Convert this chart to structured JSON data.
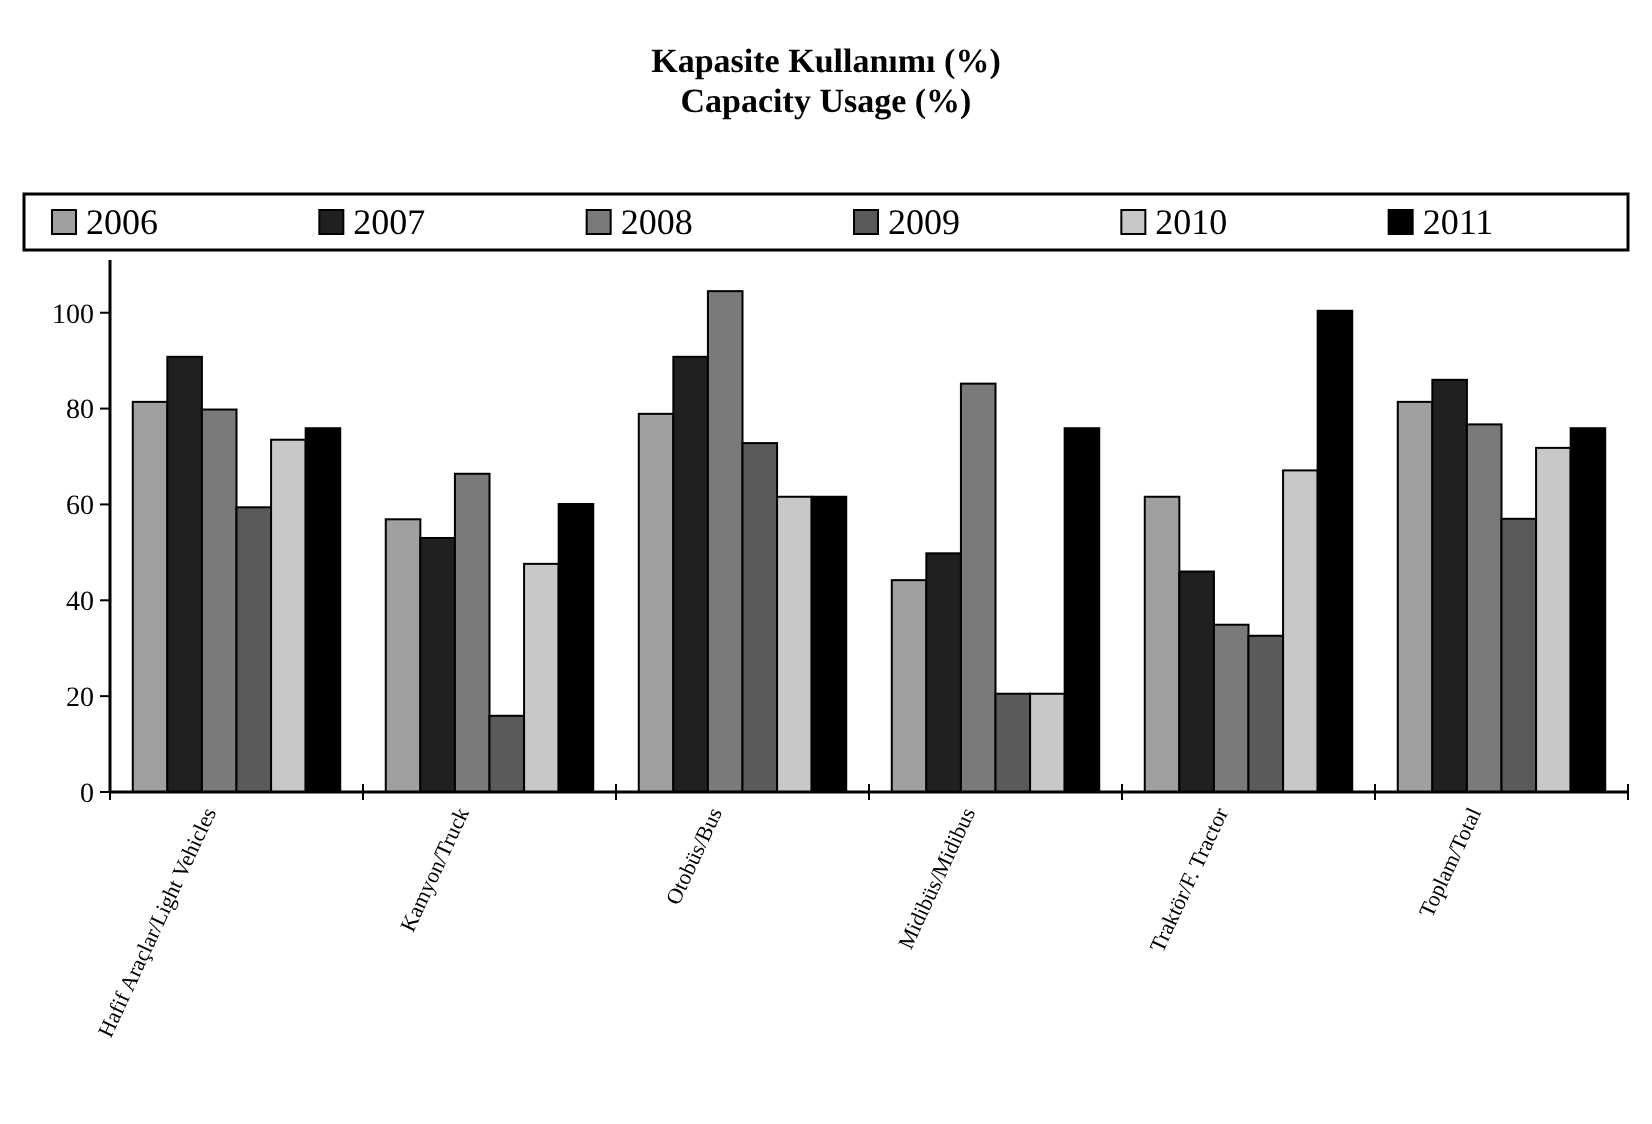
{
  "chart_data": {
    "type": "bar",
    "title": "Kapasite Kullanımı (%)",
    "subtitle": "Capacity Usage (%)",
    "categories": [
      "Hafif Araçlar/Light Vehicles",
      "Kamyon/Truck",
      "Otobüs/Bus",
      "Midibüs/Midibus",
      "Traktör/F. Tractor",
      "Toplam/Total"
    ],
    "series": [
      {
        "name": "2006",
        "color": "#a0a0a0",
        "values": [
          81.4,
          56.9,
          78.9,
          44.2,
          61.6,
          81.4
        ]
      },
      {
        "name": "2007",
        "color": "#202020",
        "values": [
          90.8,
          53,
          90.8,
          49.8,
          46,
          86
        ]
      },
      {
        "name": "2008",
        "color": "#7a7a7a",
        "values": [
          79.8,
          66.4,
          104.5,
          85.2,
          34.9,
          76.7
        ]
      },
      {
        "name": "2009",
        "color": "#5a5a5a",
        "values": [
          59.4,
          15.9,
          72.8,
          20.5,
          32.6,
          57
        ]
      },
      {
        "name": "2010",
        "color": "#c8c8c8",
        "values": [
          73.5,
          47.6,
          61.6,
          20.5,
          67.1,
          71.8
        ]
      },
      {
        "name": "2011",
        "color": "#000000",
        "values": [
          75.9,
          60.1,
          61.6,
          75.9,
          100.4,
          75.9
        ]
      }
    ],
    "ylim": [
      0,
      111
    ],
    "yticks": [
      0,
      20,
      40,
      60,
      80,
      100
    ],
    "grid": false,
    "legend": "top"
  }
}
